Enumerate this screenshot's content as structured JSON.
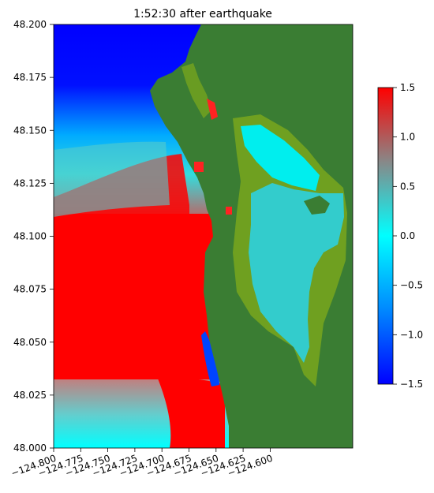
{
  "title": "1:52:30 after earthquake",
  "map": {
    "colors": {
      "deep_negative": "#0000ff",
      "mid_negative": "#00aaff",
      "zero": "#00ffff",
      "mid_positive": "#888888",
      "positive": "#ff0000",
      "land": "#3a7d33",
      "wet_land": "#6fa020",
      "harbor_water": "#33cccc"
    }
  },
  "x_ticks": [
    "−124.800",
    "−124.775",
    "−124.750",
    "−124.725",
    "−124.700",
    "−124.675",
    "−124.650",
    "−124.625",
    "−124.600"
  ],
  "y_ticks": [
    "48.200",
    "48.175",
    "48.150",
    "48.125",
    "48.100",
    "48.075",
    "48.050",
    "48.025",
    "48.000"
  ],
  "colorbar": {
    "ticks": [
      "1.5",
      "1.0",
      "0.5",
      "0.0",
      "−0.5",
      "−1.0",
      "−1.5"
    ],
    "range": [
      -1.5,
      1.5
    ]
  }
}
